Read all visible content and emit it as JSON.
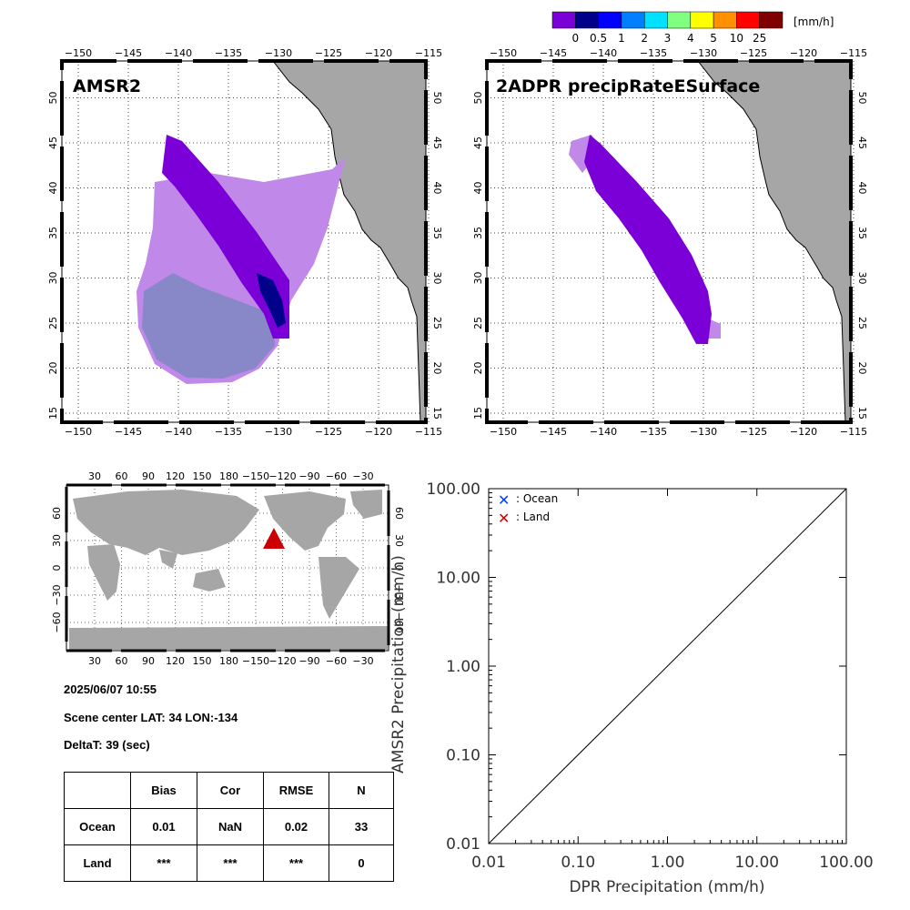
{
  "colorbar": {
    "unit": "[mm/h]",
    "colors": [
      "#7b00d8",
      "#00008a",
      "#0000ff",
      "#0080ff",
      "#00e0ff",
      "#80ff80",
      "#ffff00",
      "#ff9000",
      "#ff0000",
      "#800000"
    ],
    "labels": [
      "0",
      "0.5",
      "1",
      "2",
      "3",
      "4",
      "5",
      "10",
      "25"
    ]
  },
  "maps": {
    "left_title": "AMSR2",
    "right_title": "2ADPR precipRateESurface",
    "lon_ticks": [
      "−150",
      "−145",
      "−140",
      "−135",
      "−130",
      "−125",
      "−120",
      "−115"
    ],
    "lat_ticks": [
      "15",
      "20",
      "25",
      "30",
      "35",
      "40",
      "45",
      "50"
    ]
  },
  "globe": {
    "lon_ticks": [
      "30",
      "60",
      "90",
      "120",
      "150",
      "180",
      "−150",
      "−120",
      "−90",
      "−60",
      "−30"
    ],
    "lat_ticks": [
      "60",
      "30",
      "0",
      "−30",
      "−60"
    ],
    "marker_color": "#cc0000"
  },
  "info": {
    "datetime": "2025/06/07 10:55",
    "scene_center": "Scene center LAT: 34   LON:-134",
    "deltat": "DeltaT:   39 (sec)"
  },
  "stats": {
    "headers": [
      "",
      "Bias",
      "Cor",
      "RMSE",
      "N"
    ],
    "rows": [
      [
        "Ocean",
        "0.01",
        "NaN",
        "0.02",
        "33"
      ],
      [
        "Land",
        "***",
        "***",
        "***",
        "0"
      ]
    ]
  },
  "chart_data": {
    "type": "scatter",
    "xlabel": "DPR Precipitation (mm/h)",
    "ylabel": "AMSR2 Precipitation (mm/h)",
    "xscale": "log",
    "yscale": "log",
    "xlim": [
      0.01,
      100
    ],
    "ylim": [
      0.01,
      100
    ],
    "x_ticks": [
      "0.01",
      "0.10",
      "1.00",
      "10.00",
      "100.00"
    ],
    "y_ticks": [
      "0.01",
      "0.10",
      "1.00",
      "10.00",
      "100.00"
    ],
    "legend": [
      {
        "label": ": Ocean",
        "color": "#0040ff"
      },
      {
        "label": ": Land",
        "color": "#cc0000"
      }
    ],
    "legend_position": "top-left",
    "reference_line": "1:1",
    "series": []
  }
}
